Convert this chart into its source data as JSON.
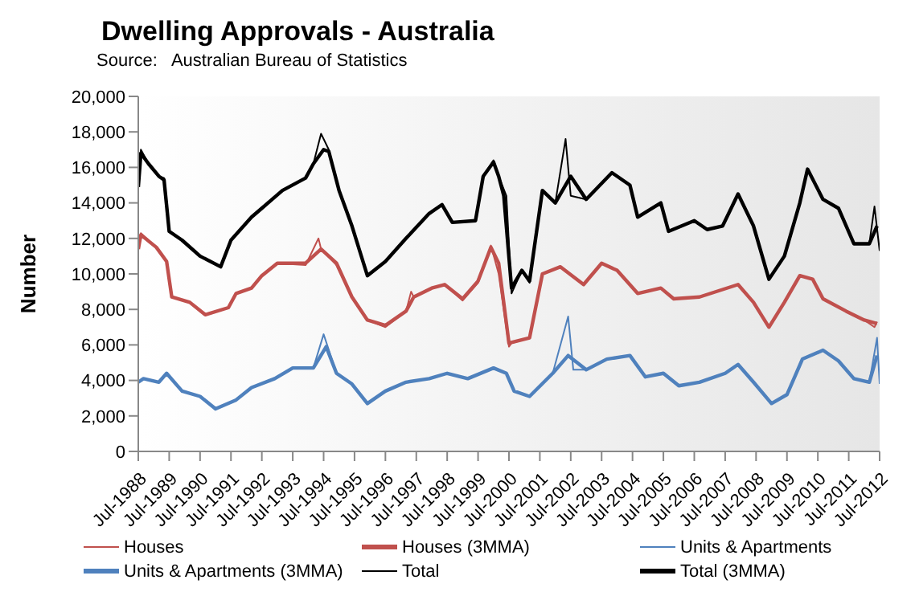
{
  "chart_data": {
    "type": "line",
    "title": "Dwelling Approvals - Australia",
    "subtitle": "Source:   Australian Bureau of Statistics",
    "ylabel": "Number",
    "xlim": [
      "1988-07",
      "2012-07"
    ],
    "xticks": [
      {
        "value": "1988-07",
        "label": "Jul-1988"
      },
      {
        "value": "1989-07",
        "label": "Jul-1989"
      },
      {
        "value": "1990-07",
        "label": "Jul-1990"
      },
      {
        "value": "1991-07",
        "label": "Jul-1991"
      },
      {
        "value": "1992-07",
        "label": "Jul-1992"
      },
      {
        "value": "1993-07",
        "label": "Jul-1993"
      },
      {
        "value": "1994-07",
        "label": "Jul-1994"
      },
      {
        "value": "1995-07",
        "label": "Jul-1995"
      },
      {
        "value": "1996-07",
        "label": "Jul-1996"
      },
      {
        "value": "1997-07",
        "label": "Jul-1997"
      },
      {
        "value": "1998-07",
        "label": "Jul-1998"
      },
      {
        "value": "1999-07",
        "label": "Jul-1999"
      },
      {
        "value": "2000-07",
        "label": "Jul-2000"
      },
      {
        "value": "2001-07",
        "label": "Jul-2001"
      },
      {
        "value": "2002-07",
        "label": "Jul-2002"
      },
      {
        "value": "2003-07",
        "label": "Jul-2003"
      },
      {
        "value": "2004-07",
        "label": "Jul-2004"
      },
      {
        "value": "2005-07",
        "label": "Jul-2005"
      },
      {
        "value": "2006-07",
        "label": "Jul-2006"
      },
      {
        "value": "2007-07",
        "label": "Jul-2007"
      },
      {
        "value": "2008-07",
        "label": "Jul-2008"
      },
      {
        "value": "2009-07",
        "label": "Jul-2009"
      },
      {
        "value": "2010-07",
        "label": "Jul-2010"
      },
      {
        "value": "2011-07",
        "label": "Jul-2011"
      },
      {
        "value": "2012-07",
        "label": "Jul-2012"
      }
    ],
    "ylim": [
      0,
      20000
    ],
    "yticks": [
      0,
      {
        "value": 2000,
        "label": "2,000"
      },
      {
        "value": 4000,
        "label": "4,000"
      },
      {
        "value": 6000,
        "label": "6,000"
      },
      {
        "value": 8000,
        "label": "8,000"
      },
      {
        "value": 10000,
        "label": "10,000"
      },
      {
        "value": 12000,
        "label": "12,000"
      },
      {
        "value": 14000,
        "label": "14,000"
      },
      {
        "value": 16000,
        "label": "16,000"
      },
      {
        "value": 18000,
        "label": "18,000"
      },
      {
        "value": 20000,
        "label": "20,000"
      }
    ],
    "grid": false,
    "legend": "bottom",
    "marker": "none",
    "line_style": "solid",
    "series": [
      {
        "name": "Houses",
        "color": "#c0504d",
        "x": [
          "1988-07",
          "1988-08",
          "1989-02",
          "1989-06",
          "1989-08",
          "1990-03",
          "1990-09",
          "1991-06",
          "1991-09",
          "1992-03",
          "1992-07",
          "1993-01",
          "1993-12",
          "1994-05",
          "1994-06",
          "1994-12",
          "1995-06",
          "1995-12",
          "1996-07",
          "1997-03",
          "1997-05",
          "1997-06",
          "1998-01",
          "1998-06",
          "1999-01",
          "1999-07",
          "1999-12",
          "2000-03",
          "2000-07",
          "2000-08",
          "2001-03",
          "2001-08",
          "2002-03",
          "2002-12",
          "2003-07",
          "2004-01",
          "2004-09",
          "2005-06",
          "2005-11",
          "2006-09",
          "2007-12",
          "2008-06",
          "2008-12",
          "2009-06",
          "2009-12",
          "2010-05",
          "2010-09",
          "2011-06",
          "2012-01",
          "2012-05",
          "2012-06"
        ],
        "values": [
          11400,
          12300,
          11500,
          10700,
          8700,
          8400,
          7700,
          8100,
          8900,
          9200,
          9900,
          10600,
          10500,
          12000,
          11400,
          10500,
          8700,
          7400,
          7000,
          7900,
          9000,
          8700,
          9200,
          9400,
          8500,
          9500,
          11600,
          10000,
          5900,
          6100,
          6400,
          10000,
          10400,
          9400,
          10600,
          10200,
          8900,
          9200,
          8600,
          8700,
          9400,
          8400,
          7000,
          8400,
          9900,
          9700,
          8600,
          7900,
          7400,
          7000,
          7300
        ]
      },
      {
        "name": "Houses (3MMA)",
        "color": "#c0504d",
        "x": [
          "1988-07",
          "1988-08",
          "1989-02",
          "1989-06",
          "1989-08",
          "1990-03",
          "1990-09",
          "1991-06",
          "1991-09",
          "1992-03",
          "1992-07",
          "1993-01",
          "1993-12",
          "1994-06",
          "1994-12",
          "1995-06",
          "1995-12",
          "1996-07",
          "1997-03",
          "1997-06",
          "1998-01",
          "1998-06",
          "1999-01",
          "1999-07",
          "1999-12",
          "2000-03",
          "2000-07",
          "2001-03",
          "2001-08",
          "2002-03",
          "2002-12",
          "2003-07",
          "2004-01",
          "2004-09",
          "2005-06",
          "2005-11",
          "2006-09",
          "2007-12",
          "2008-06",
          "2008-12",
          "2009-06",
          "2009-12",
          "2010-05",
          "2010-09",
          "2011-06",
          "2012-01",
          "2012-06"
        ],
        "values": [
          11400,
          12200,
          11500,
          10700,
          8700,
          8400,
          7700,
          8100,
          8900,
          9200,
          9900,
          10600,
          10600,
          11400,
          10600,
          8700,
          7400,
          7100,
          7900,
          8700,
          9200,
          9400,
          8600,
          9600,
          11500,
          10600,
          6100,
          6400,
          10000,
          10400,
          9400,
          10600,
          10200,
          8900,
          9200,
          8600,
          8700,
          9400,
          8400,
          7000,
          8400,
          9900,
          9700,
          8600,
          7900,
          7400,
          7200
        ]
      },
      {
        "name": "Units & Apartments",
        "color": "#4f81bd",
        "x": [
          "1988-07",
          "1988-09",
          "1989-03",
          "1989-06",
          "1989-12",
          "1990-07",
          "1991-01",
          "1991-09",
          "1992-03",
          "1992-12",
          "1993-07",
          "1994-03",
          "1994-07",
          "1994-12",
          "1995-06",
          "1995-12",
          "1996-07",
          "1997-03",
          "1997-12",
          "1998-07",
          "1999-03",
          "2000-01",
          "2000-06",
          "2000-09",
          "2001-03",
          "2001-12",
          "2002-06",
          "2002-08",
          "2003-01",
          "2003-09",
          "2004-06",
          "2004-12",
          "2005-07",
          "2006-01",
          "2006-09",
          "2007-07",
          "2007-12",
          "2008-06",
          "2009-01",
          "2009-07",
          "2010-01",
          "2010-09",
          "2011-03",
          "2011-09",
          "2012-03",
          "2012-06",
          "2012-07"
        ],
        "values": [
          3900,
          4100,
          3900,
          4400,
          3400,
          3100,
          2400,
          2900,
          3600,
          4100,
          4700,
          4700,
          6600,
          4400,
          3800,
          2700,
          3400,
          3900,
          4100,
          4400,
          4100,
          4700,
          4400,
          3400,
          3100,
          4400,
          7600,
          4600,
          4600,
          5200,
          5400,
          4200,
          4400,
          3700,
          3900,
          4400,
          4900,
          3900,
          2700,
          3200,
          5200,
          5700,
          5100,
          4100,
          3900,
          6400,
          3800
        ]
      },
      {
        "name": "Units & Apartments (3MMA)",
        "color": "#4f81bd",
        "x": [
          "1988-07",
          "1988-09",
          "1989-03",
          "1989-06",
          "1989-12",
          "1990-07",
          "1991-01",
          "1991-09",
          "1992-03",
          "1992-12",
          "1993-07",
          "1994-03",
          "1994-08",
          "1994-12",
          "1995-06",
          "1995-12",
          "1996-07",
          "1997-03",
          "1997-12",
          "1998-07",
          "1999-03",
          "2000-01",
          "2000-06",
          "2000-09",
          "2001-03",
          "2001-12",
          "2002-06",
          "2003-01",
          "2003-09",
          "2004-06",
          "2004-12",
          "2005-07",
          "2006-01",
          "2006-09",
          "2007-07",
          "2007-12",
          "2008-06",
          "2009-01",
          "2009-07",
          "2010-01",
          "2010-09",
          "2011-03",
          "2011-09",
          "2012-03",
          "2012-06"
        ],
        "values": [
          3900,
          4100,
          3900,
          4400,
          3400,
          3100,
          2400,
          2900,
          3600,
          4100,
          4700,
          4700,
          5900,
          4400,
          3800,
          2700,
          3400,
          3900,
          4100,
          4400,
          4100,
          4700,
          4400,
          3400,
          3100,
          4400,
          5400,
          4600,
          5200,
          5400,
          4200,
          4400,
          3700,
          3900,
          4400,
          4900,
          3900,
          2700,
          3200,
          5200,
          5700,
          5100,
          4100,
          3900,
          5400
        ]
      },
      {
        "name": "Total",
        "color": "#000000",
        "x": [
          "1988-07",
          "1988-08",
          "1988-11",
          "1989-03",
          "1989-05",
          "1989-07",
          "1989-12",
          "1990-07",
          "1991-03",
          "1991-07",
          "1992-03",
          "1992-07",
          "1993-03",
          "1993-12",
          "1994-03",
          "1994-06",
          "1994-09",
          "1995-01",
          "1995-06",
          "1995-12",
          "1996-07",
          "1997-03",
          "1997-12",
          "1998-05",
          "1998-09",
          "1999-06",
          "1999-09",
          "2000-01",
          "2000-03",
          "2000-06",
          "2000-08",
          "2000-12",
          "2001-03",
          "2001-08",
          "2002-01",
          "2002-05",
          "2002-07",
          "2003-01",
          "2003-11",
          "2004-06",
          "2004-09",
          "2005-06",
          "2005-09",
          "2006-07",
          "2006-12",
          "2007-06",
          "2007-12",
          "2008-06",
          "2008-12",
          "2009-06",
          "2009-12",
          "2010-03",
          "2010-09",
          "2011-03",
          "2011-09",
          "2012-03",
          "2012-05",
          "2012-07"
        ],
        "values": [
          14900,
          17000,
          16200,
          15500,
          15400,
          12400,
          11900,
          11000,
          10400,
          11900,
          13200,
          13700,
          14700,
          15400,
          16200,
          17900,
          17000,
          14700,
          12700,
          9900,
          10700,
          12000,
          13400,
          13900,
          12900,
          13000,
          15500,
          16400,
          15500,
          14400,
          8900,
          10200,
          9500,
          14700,
          14000,
          17600,
          14400,
          14200,
          15700,
          15000,
          13200,
          14000,
          12400,
          13000,
          12500,
          12700,
          14500,
          12700,
          9700,
          11000,
          14000,
          15900,
          14200,
          13700,
          11700,
          11700,
          13800,
          11300
        ]
      },
      {
        "name": "Total (3MMA)",
        "color": "#000000",
        "x": [
          "1988-07",
          "1988-08",
          "1988-11",
          "1989-03",
          "1989-05",
          "1989-07",
          "1989-12",
          "1990-07",
          "1991-03",
          "1991-07",
          "1992-03",
          "1992-07",
          "1993-03",
          "1993-12",
          "1994-03",
          "1994-07",
          "1994-09",
          "1995-01",
          "1995-06",
          "1995-12",
          "1996-07",
          "1997-03",
          "1997-12",
          "1998-05",
          "1998-09",
          "1999-06",
          "1999-09",
          "2000-01",
          "2000-03",
          "2000-05",
          "2000-08",
          "2000-12",
          "2001-03",
          "2001-08",
          "2002-01",
          "2002-07",
          "2003-01",
          "2003-11",
          "2004-06",
          "2004-09",
          "2005-06",
          "2005-09",
          "2006-07",
          "2006-12",
          "2007-06",
          "2007-12",
          "2008-06",
          "2008-12",
          "2009-06",
          "2009-12",
          "2010-03",
          "2010-09",
          "2011-03",
          "2011-09",
          "2012-03",
          "2012-06"
        ],
        "values": [
          14900,
          16800,
          16200,
          15500,
          15300,
          12400,
          11900,
          11000,
          10400,
          11900,
          13200,
          13700,
          14700,
          15400,
          16200,
          17000,
          16900,
          14700,
          12700,
          9900,
          10700,
          12000,
          13400,
          13900,
          12900,
          13000,
          15500,
          16300,
          15500,
          14400,
          9200,
          10200,
          9600,
          14700,
          14000,
          15500,
          14200,
          15700,
          15000,
          13200,
          14000,
          12400,
          13000,
          12500,
          12700,
          14500,
          12700,
          9700,
          11000,
          14000,
          15900,
          14200,
          13700,
          11700,
          11700,
          12700
        ]
      }
    ]
  }
}
